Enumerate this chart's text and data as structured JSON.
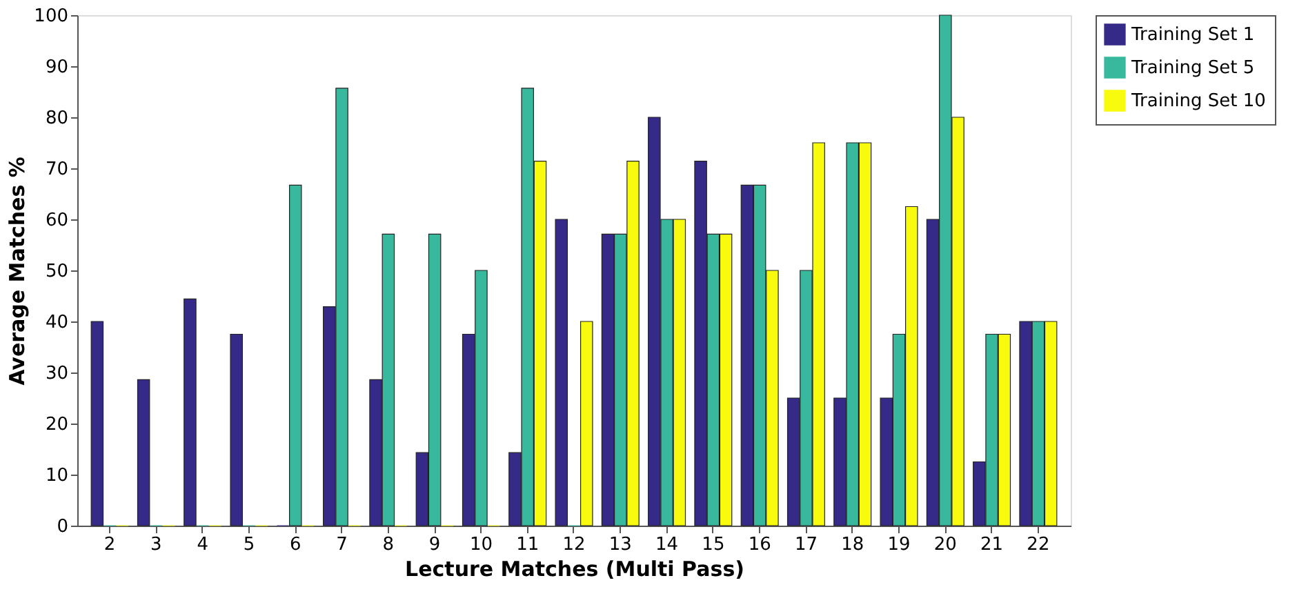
{
  "chart_data": {
    "type": "bar",
    "xlabel": "Lecture Matches (Multi Pass)",
    "ylabel": "Average Matches %",
    "categories": [
      "2",
      "3",
      "4",
      "5",
      "6",
      "7",
      "8",
      "9",
      "10",
      "11",
      "12",
      "13",
      "14",
      "15",
      "16",
      "17",
      "18",
      "19",
      "20",
      "21",
      "22"
    ],
    "series": [
      {
        "name": "Training Set 1",
        "color": "#352a87",
        "values": [
          40,
          28.6,
          44.4,
          37.5,
          0,
          42.9,
          28.6,
          14.3,
          37.5,
          14.3,
          60,
          57.1,
          80,
          71.4,
          66.7,
          25,
          25,
          25,
          60,
          12.5,
          40
        ]
      },
      {
        "name": "Training Set 5",
        "color": "#38b99e",
        "values": [
          0,
          0,
          0,
          0,
          66.7,
          85.7,
          57.1,
          57.1,
          50,
          85.7,
          0,
          57.1,
          60,
          57.1,
          66.7,
          50,
          75,
          37.5,
          100,
          37.5,
          40
        ]
      },
      {
        "name": "Training Set 10",
        "color": "#f9fb0e",
        "values": [
          0,
          0,
          0,
          0,
          0,
          0,
          0,
          0,
          0,
          71.4,
          40,
          71.4,
          60,
          57.1,
          50,
          75,
          75,
          62.5,
          80,
          37.5,
          40
        ]
      }
    ],
    "ylim": [
      0,
      100
    ],
    "yticks": [
      0,
      10,
      20,
      30,
      40,
      50,
      60,
      70,
      80,
      90,
      100
    ],
    "grid": false,
    "legend": "right"
  }
}
